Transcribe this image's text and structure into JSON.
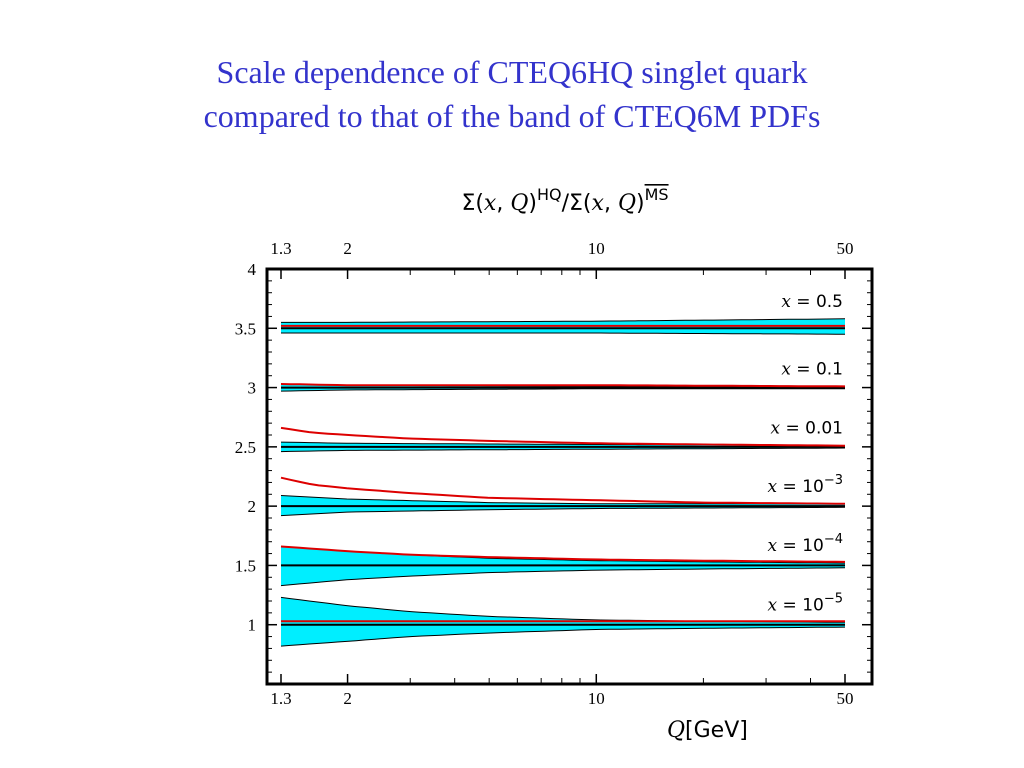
{
  "title": {
    "line1": "Scale dependence of CTEQ6HQ singlet quark",
    "line2": "compared to that of the band of CTEQ6M PDFs"
  },
  "colors": {
    "title": "#3333cc",
    "band": "#00eeff",
    "hq_curve": "#dd0000",
    "reference": "#000000"
  },
  "chart_data": {
    "type": "line",
    "title": {
      "sigma": "Σ(",
      "x": "x",
      "comma": ", ",
      "q": "Q",
      "close": ")",
      "sup_hq": "HQ",
      "slash": "/",
      "sup_ms": "MS"
    },
    "xlabel": {
      "var": "Q",
      "unit": "[GeV]"
    },
    "ylabel": "",
    "xscale": "log",
    "xlim": [
      1.3,
      50
    ],
    "ylim": [
      0.5,
      4
    ],
    "xticks": [
      {
        "value": 1.3,
        "label": "1.3"
      },
      {
        "value": 2,
        "label": "2"
      },
      {
        "value": 10,
        "label": "10"
      },
      {
        "value": 50,
        "label": "50"
      }
    ],
    "xminor": [
      3,
      4,
      5,
      6,
      7,
      8,
      9,
      20,
      30,
      40
    ],
    "yticks": [
      {
        "value": 1,
        "label": "1"
      },
      {
        "value": 1.5,
        "label": "1.5"
      },
      {
        "value": 2,
        "label": "2"
      },
      {
        "value": 2.5,
        "label": "2.5"
      },
      {
        "value": 3,
        "label": "3"
      },
      {
        "value": 3.5,
        "label": "3.5"
      },
      {
        "value": 4,
        "label": "4"
      }
    ],
    "grid": false,
    "legend": "none",
    "series": [
      {
        "label_x": "x",
        "label_eq": " = 0.5",
        "label_sup": "",
        "ref": 3.5,
        "band_upper": [
          [
            1.3,
            3.55
          ],
          [
            2,
            3.55
          ],
          [
            10,
            3.56
          ],
          [
            50,
            3.58
          ]
        ],
        "band_lower": [
          [
            1.3,
            3.46
          ],
          [
            2,
            3.46
          ],
          [
            10,
            3.46
          ],
          [
            50,
            3.45
          ]
        ],
        "hq": [
          [
            1.3,
            3.52
          ],
          [
            2,
            3.52
          ],
          [
            10,
            3.52
          ],
          [
            50,
            3.52
          ]
        ]
      },
      {
        "label_x": "x",
        "label_eq": " = 0.1",
        "label_sup": "",
        "ref": 3.0,
        "band_upper": [
          [
            1.3,
            3.03
          ],
          [
            2,
            3.02
          ],
          [
            10,
            3.01
          ],
          [
            50,
            3.01
          ]
        ],
        "band_lower": [
          [
            1.3,
            2.97
          ],
          [
            2,
            2.98
          ],
          [
            10,
            2.99
          ],
          [
            50,
            2.99
          ]
        ],
        "hq": [
          [
            1.3,
            3.03
          ],
          [
            2,
            3.02
          ],
          [
            10,
            3.02
          ],
          [
            50,
            3.01
          ]
        ]
      },
      {
        "label_x": "x",
        "label_eq": " = 0.01",
        "label_sup": "",
        "ref": 2.5,
        "band_upper": [
          [
            1.3,
            2.54
          ],
          [
            2,
            2.53
          ],
          [
            10,
            2.52
          ],
          [
            50,
            2.51
          ]
        ],
        "band_lower": [
          [
            1.3,
            2.46
          ],
          [
            2,
            2.47
          ],
          [
            10,
            2.48
          ],
          [
            50,
            2.49
          ]
        ],
        "hq": [
          [
            1.3,
            2.66
          ],
          [
            1.6,
            2.62
          ],
          [
            2,
            2.6
          ],
          [
            3,
            2.57
          ],
          [
            5,
            2.55
          ],
          [
            10,
            2.53
          ],
          [
            20,
            2.52
          ],
          [
            50,
            2.51
          ]
        ]
      },
      {
        "label_x": "x",
        "label_eq": " = 10",
        "label_sup": "−3",
        "ref": 2.0,
        "band_upper": [
          [
            1.3,
            2.09
          ],
          [
            2,
            2.06
          ],
          [
            5,
            2.03
          ],
          [
            10,
            2.02
          ],
          [
            50,
            2.02
          ]
        ],
        "band_lower": [
          [
            1.3,
            1.92
          ],
          [
            2,
            1.95
          ],
          [
            5,
            1.97
          ],
          [
            10,
            1.98
          ],
          [
            50,
            1.99
          ]
        ],
        "hq": [
          [
            1.3,
            2.24
          ],
          [
            1.6,
            2.18
          ],
          [
            2,
            2.15
          ],
          [
            3,
            2.11
          ],
          [
            5,
            2.07
          ],
          [
            10,
            2.05
          ],
          [
            20,
            2.03
          ],
          [
            50,
            2.02
          ]
        ]
      },
      {
        "label_x": "x",
        "label_eq": " = 10",
        "label_sup": "−4",
        "ref": 1.5,
        "band_upper": [
          [
            1.3,
            1.66
          ],
          [
            2,
            1.62
          ],
          [
            3,
            1.59
          ],
          [
            5,
            1.56
          ],
          [
            10,
            1.54
          ],
          [
            20,
            1.53
          ],
          [
            50,
            1.52
          ]
        ],
        "band_lower": [
          [
            1.3,
            1.33
          ],
          [
            2,
            1.38
          ],
          [
            3,
            1.41
          ],
          [
            5,
            1.44
          ],
          [
            10,
            1.46
          ],
          [
            20,
            1.47
          ],
          [
            50,
            1.48
          ]
        ],
        "hq": [
          [
            1.3,
            1.66
          ],
          [
            2,
            1.62
          ],
          [
            3,
            1.59
          ],
          [
            5,
            1.57
          ],
          [
            10,
            1.55
          ],
          [
            20,
            1.54
          ],
          [
            50,
            1.53
          ]
        ]
      },
      {
        "label_x": "x",
        "label_eq": " = 10",
        "label_sup": "−5",
        "ref": 1.0,
        "band_upper": [
          [
            1.3,
            1.23
          ],
          [
            2,
            1.16
          ],
          [
            3,
            1.11
          ],
          [
            5,
            1.07
          ],
          [
            10,
            1.04
          ],
          [
            20,
            1.03
          ],
          [
            50,
            1.02
          ]
        ],
        "band_lower": [
          [
            1.3,
            0.82
          ],
          [
            2,
            0.86
          ],
          [
            3,
            0.9
          ],
          [
            5,
            0.93
          ],
          [
            10,
            0.96
          ],
          [
            20,
            0.97
          ],
          [
            50,
            0.98
          ]
        ],
        "hq": [
          [
            1.3,
            1.03
          ],
          [
            2,
            1.03
          ],
          [
            10,
            1.03
          ],
          [
            50,
            1.03
          ]
        ]
      }
    ]
  }
}
